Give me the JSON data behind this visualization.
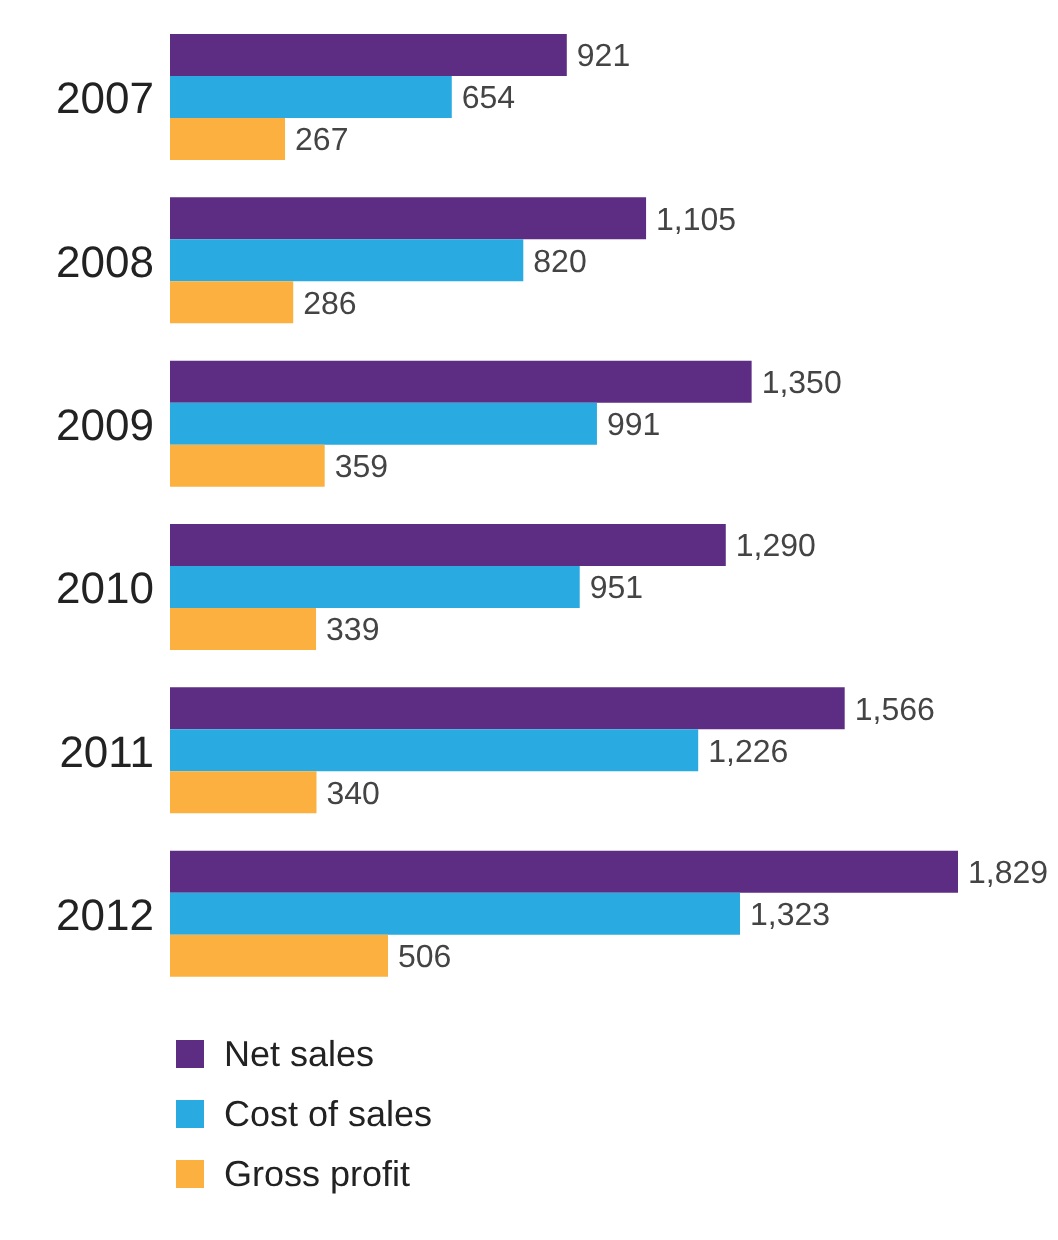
{
  "chart_data": {
    "type": "bar",
    "orientation": "horizontal",
    "categories": [
      "2007",
      "2008",
      "2009",
      "2010",
      "2011",
      "2012"
    ],
    "series": [
      {
        "name": "Net sales",
        "color": "#5c2d83",
        "values": [
          921,
          1105,
          1350,
          1290,
          1566,
          1829
        ],
        "value_labels": [
          "921",
          "1,105",
          "1,350",
          "1,290",
          "1,566",
          "1,829"
        ]
      },
      {
        "name": "Cost of sales",
        "color": "#29abe2",
        "values": [
          654,
          820,
          991,
          951,
          1226,
          1323
        ],
        "value_labels": [
          "654",
          "820",
          "991",
          "951",
          "1,226",
          "1,323"
        ]
      },
      {
        "name": "Gross profit",
        "color": "#fbb040",
        "values": [
          267,
          286,
          359,
          339,
          340,
          506
        ],
        "value_labels": [
          "267",
          "286",
          "359",
          "339",
          "340",
          "506"
        ]
      }
    ],
    "legend": "bottom",
    "grid": false,
    "tick_labels": "y"
  }
}
